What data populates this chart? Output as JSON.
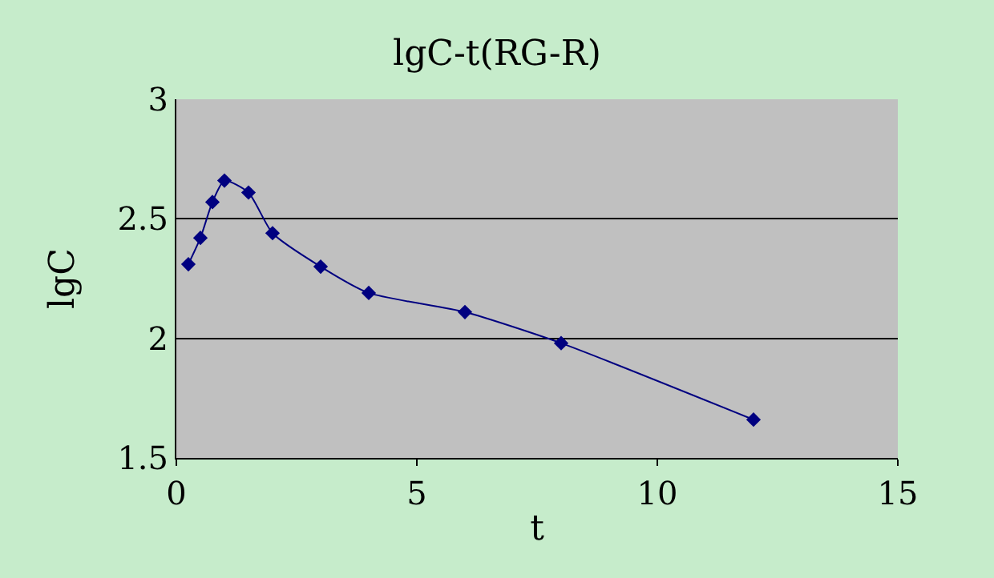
{
  "chart_data": {
    "type": "line",
    "title": "lgC-t(RG-R)",
    "xlabel": "t",
    "ylabel": "lgC",
    "x": [
      0.25,
      0.5,
      0.75,
      1,
      1.5,
      2,
      3,
      4,
      6,
      8,
      12
    ],
    "series": [
      {
        "color": "#000080",
        "values": [
          2.31,
          2.42,
          2.57,
          2.66,
          2.61,
          2.44,
          2.3,
          2.19,
          2.11,
          1.98,
          1.66
        ]
      }
    ],
    "xlim": [
      0,
      15
    ],
    "xticks": [
      0,
      5,
      10,
      15
    ],
    "ylim": [
      1.5,
      3
    ],
    "yticks": [
      1.5,
      2,
      2.5,
      3
    ],
    "grid": "y",
    "marker": "diamond",
    "line_style": "solid"
  }
}
